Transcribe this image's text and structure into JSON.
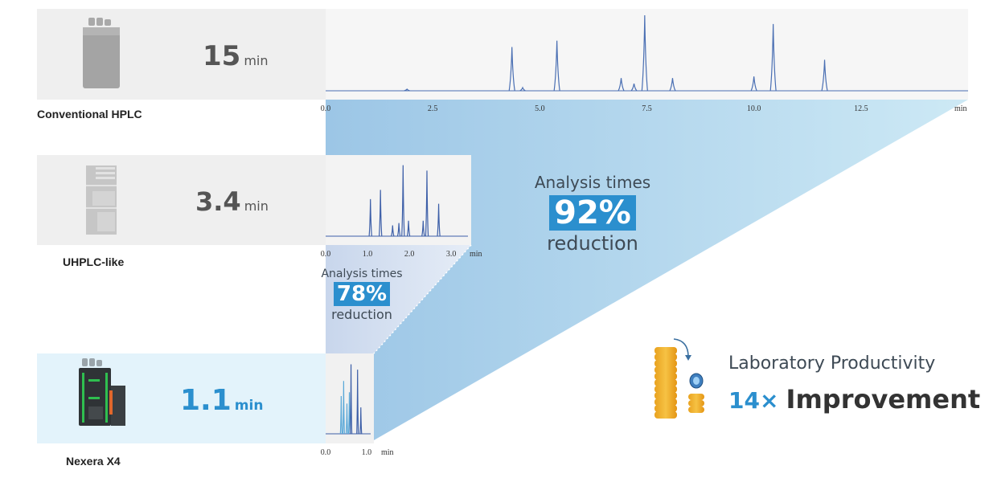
{
  "rows": [
    {
      "name": "Conventional HPLC",
      "time": "15",
      "unit": "min"
    },
    {
      "name": "UHPLC-like",
      "time": "3.4",
      "unit": "min"
    },
    {
      "name": "Nexera X4",
      "time": "1.1",
      "unit": "min"
    }
  ],
  "reduction_large": {
    "line1": "Analysis times",
    "percent": "92%",
    "line2": "reduction"
  },
  "reduction_small": {
    "line1": "Analysis times",
    "percent": "78%",
    "line2": "reduction"
  },
  "productivity": {
    "line1": "Laboratory Productivity",
    "factor": "14×",
    "label": "Improvement"
  },
  "colors": {
    "accent": "#2b8fce",
    "chrom_line": "#4a6fb3",
    "nexera_highlight": "#e3f3fb",
    "wedge": "#a9d6ec"
  },
  "icons": [
    "hplc-instrument-icon",
    "uhplc-instrument-icon",
    "nexera-instrument-icon",
    "coins-icon"
  ],
  "chart_data": [
    {
      "type": "line",
      "name": "Conventional HPLC chromatogram",
      "xlim": [
        0,
        15
      ],
      "x_ticks": [
        "0.0",
        "2.5",
        "5.0",
        "7.5",
        "10.0",
        "12.5"
      ],
      "x_unit": "min",
      "peaks": [
        {
          "x": 1.9,
          "h": 0.02
        },
        {
          "x": 4.35,
          "h": 0.55
        },
        {
          "x": 4.6,
          "h": 0.04
        },
        {
          "x": 5.4,
          "h": 0.63
        },
        {
          "x": 6.9,
          "h": 0.16
        },
        {
          "x": 7.2,
          "h": 0.09
        },
        {
          "x": 7.45,
          "h": 0.95
        },
        {
          "x": 8.1,
          "h": 0.16
        },
        {
          "x": 10.0,
          "h": 0.18
        },
        {
          "x": 10.45,
          "h": 0.84
        },
        {
          "x": 11.65,
          "h": 0.39
        }
      ]
    },
    {
      "type": "line",
      "name": "UHPLC-like chromatogram",
      "xlim": [
        0,
        3.4
      ],
      "x_ticks": [
        "0.0",
        "1.0",
        "2.0",
        "3.0"
      ],
      "x_unit": "min",
      "peaks": [
        {
          "x": 1.07,
          "h": 0.48
        },
        {
          "x": 1.31,
          "h": 0.6
        },
        {
          "x": 1.6,
          "h": 0.14
        },
        {
          "x": 1.75,
          "h": 0.17
        },
        {
          "x": 1.85,
          "h": 0.92
        },
        {
          "x": 1.98,
          "h": 0.2
        },
        {
          "x": 2.33,
          "h": 0.2
        },
        {
          "x": 2.42,
          "h": 0.85
        },
        {
          "x": 2.7,
          "h": 0.42
        }
      ]
    },
    {
      "type": "line",
      "name": "Nexera X4 chromatogram",
      "xlim": [
        0,
        1.1
      ],
      "x_ticks": [
        "0.0",
        "1.0"
      ],
      "x_unit": "min",
      "peaks": [
        {
          "x": 0.38,
          "h": 0.5
        },
        {
          "x": 0.44,
          "h": 0.7
        },
        {
          "x": 0.52,
          "h": 0.4
        },
        {
          "x": 0.58,
          "h": 0.55
        },
        {
          "x": 0.62,
          "h": 0.92
        },
        {
          "x": 0.78,
          "h": 0.85
        },
        {
          "x": 0.86,
          "h": 0.35
        }
      ]
    }
  ]
}
